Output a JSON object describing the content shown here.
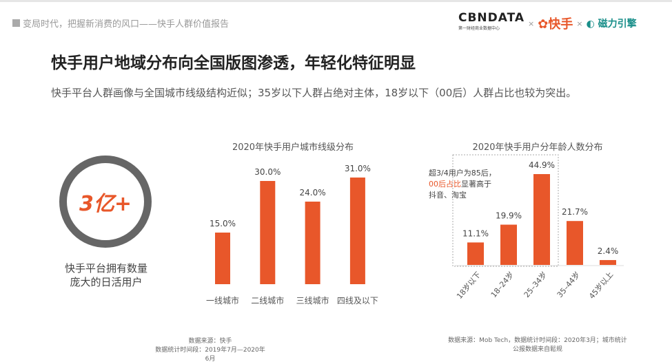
{
  "header": {
    "report_title": "变局时代，把握新消费的风口——快手人群价值报告"
  },
  "logos": {
    "cbndata": "CBNDATA",
    "cbndata_sub": "第一财经商业数据中心",
    "kuaishou": "快手",
    "cili": "磁力引擎",
    "sep": "×"
  },
  "title": "快手用户地域分布向全国版图渗透，年轻化特征明显",
  "subtitle": "快手平台人群画像与全国城市线级结构近似；35岁以下人群占绝对主体，18岁以下（00后）人群占比也较为突出。",
  "highlight": {
    "value": "3亿+",
    "label_line1": "快手平台拥有数量",
    "label_line2": "庞大的日活用户"
  },
  "colors": {
    "bar": "#e8572a",
    "accent": "#e8572a",
    "ring": "#666666"
  },
  "chart_data": [
    {
      "type": "bar",
      "title": "2020年快手用户城市线级分布",
      "categories": [
        "一线城市",
        "二线城市",
        "三线城市",
        "四线及以下"
      ],
      "values": [
        15.0,
        30.0,
        24.0,
        31.0
      ],
      "data_labels": [
        "15.0%",
        "30.0%",
        "24.0%",
        "31.0%"
      ],
      "unit": "%",
      "grid": false,
      "source_line1": "数据来源：快手",
      "source_line2": "数据统计时间段：2019年7月—2020年6月"
    },
    {
      "type": "bar",
      "title": "2020年快手用户分年龄人数分布",
      "categories": [
        "18岁以下",
        "18–24岁",
        "25–34岁",
        "35–44岁",
        "45岁以上"
      ],
      "values": [
        11.1,
        19.9,
        44.9,
        21.7,
        2.4
      ],
      "data_labels": [
        "11.1%",
        "19.9%",
        "44.9%",
        "21.7%",
        "2.4%"
      ],
      "unit": "%",
      "grid": false,
      "annotation": {
        "line1": "超3/4用户为85后，",
        "line2_highlight": "00后占比",
        "line2_rest": "显著高于",
        "line3": "抖音、淘宝"
      },
      "source_line1": "数据来源：Mob Tech，数据统计时间段：2020年3月；城市统计",
      "source_line2": "公报数据来自鬆规"
    }
  ]
}
